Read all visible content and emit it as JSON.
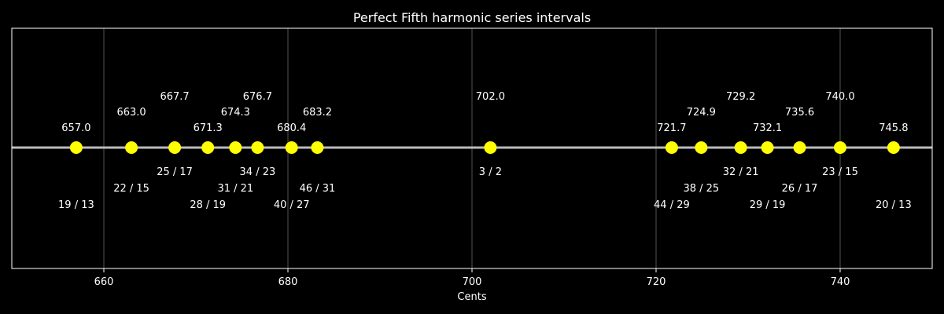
{
  "chart_data": {
    "type": "scatter",
    "title": "Perfect Fifth harmonic series intervals",
    "xlabel": "Cents",
    "ylabel": "",
    "xlim": [
      650,
      750
    ],
    "x_ticks": [
      660,
      680,
      700,
      720,
      740
    ],
    "grid": "vertical",
    "legend": "none",
    "colors": {
      "background": "#000000",
      "marker": "#ffff00",
      "baseline": "#bbbbbb",
      "grid": "#555555",
      "frame": "#ffffff",
      "text": "#ffffff"
    },
    "points": [
      {
        "cents": 657.0,
        "cents_label": "657.0",
        "ratio": "19 / 13",
        "level": 1
      },
      {
        "cents": 663.0,
        "cents_label": "663.0",
        "ratio": "22 / 15",
        "level": 2
      },
      {
        "cents": 667.7,
        "cents_label": "667.7",
        "ratio": "25 / 17",
        "level": 3
      },
      {
        "cents": 671.3,
        "cents_label": "671.3",
        "ratio": "28 / 19",
        "level": 1
      },
      {
        "cents": 674.3,
        "cents_label": "674.3",
        "ratio": "31 / 21",
        "level": 2
      },
      {
        "cents": 676.7,
        "cents_label": "676.7",
        "ratio": "34 / 23",
        "level": 3
      },
      {
        "cents": 680.4,
        "cents_label": "680.4",
        "ratio": "40 / 27",
        "level": 1
      },
      {
        "cents": 683.2,
        "cents_label": "683.2",
        "ratio": "46 / 31",
        "level": 2
      },
      {
        "cents": 702.0,
        "cents_label": "702.0",
        "ratio": "3 / 2",
        "level": 3
      },
      {
        "cents": 721.7,
        "cents_label": "721.7",
        "ratio": "44 / 29",
        "level": 1
      },
      {
        "cents": 724.9,
        "cents_label": "724.9",
        "ratio": "38 / 25",
        "level": 2
      },
      {
        "cents": 729.2,
        "cents_label": "729.2",
        "ratio": "32 / 21",
        "level": 3
      },
      {
        "cents": 732.1,
        "cents_label": "732.1",
        "ratio": "29 / 19",
        "level": 1
      },
      {
        "cents": 735.6,
        "cents_label": "735.6",
        "ratio": "26 / 17",
        "level": 2
      },
      {
        "cents": 740.0,
        "cents_label": "740.0",
        "ratio": "23 / 15",
        "level": 3
      },
      {
        "cents": 745.8,
        "cents_label": "745.8",
        "ratio": "20 / 13",
        "level": 1
      }
    ]
  }
}
